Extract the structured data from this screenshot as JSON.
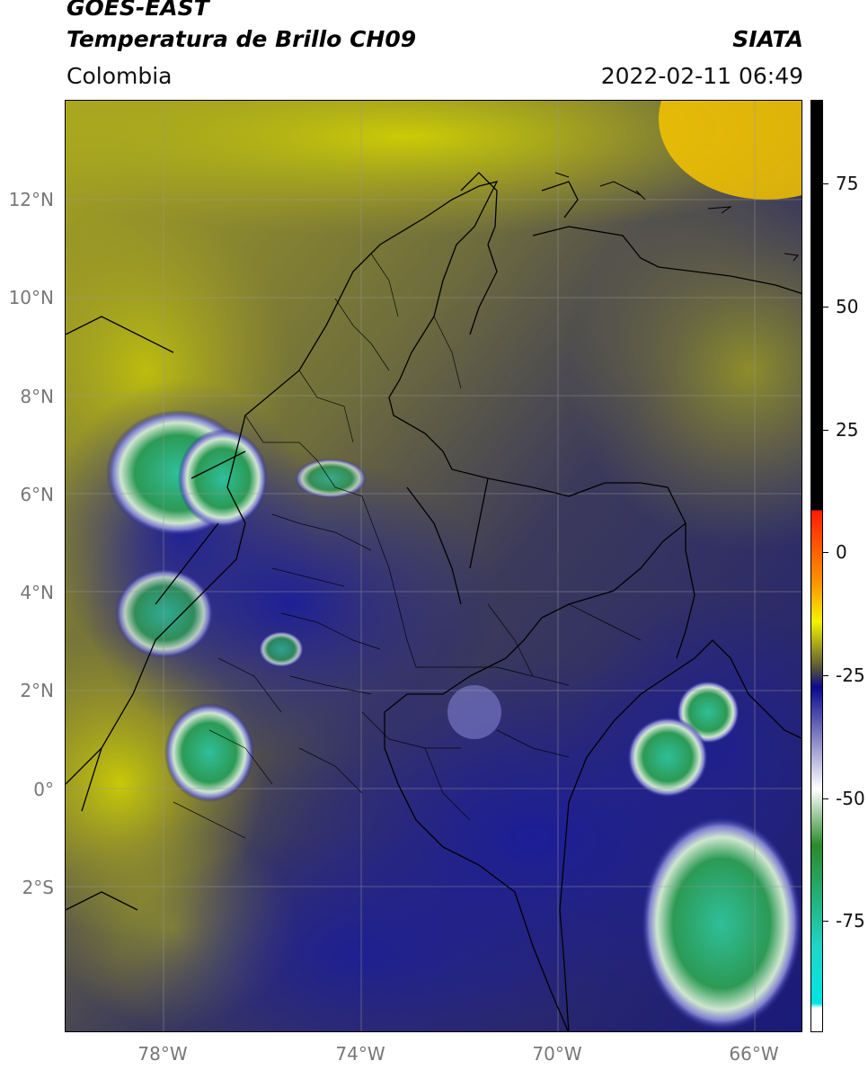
{
  "header": {
    "satellite": "GOES-EAST",
    "product": "Temperatura de Brillo CH09",
    "organization": "SIATA",
    "region": "Colombia",
    "datetime": "2022-02-11 06:49"
  },
  "map": {
    "lat_ticks": [
      "12°N",
      "10°N",
      "8°N",
      "6°N",
      "4°N",
      "2°N",
      "0°",
      "2°S"
    ],
    "lon_ticks": [
      "78°W",
      "74°W",
      "70°W",
      "66°W"
    ],
    "gridlines": true
  },
  "colorbar": {
    "ticks": [
      "75",
      "50",
      "25",
      "0",
      "-25",
      "-50",
      "-75"
    ],
    "colors": {
      "black": "#000000",
      "red": "#ff1a00",
      "orange": "#ff9900",
      "yellow": "#f2f200",
      "olive": "#55543a",
      "navy": "#0a0a8c",
      "white": "#ffffff",
      "green": "#2a8a2a",
      "teal": "#1fd6c8",
      "cyan": "#00e5e5"
    }
  }
}
